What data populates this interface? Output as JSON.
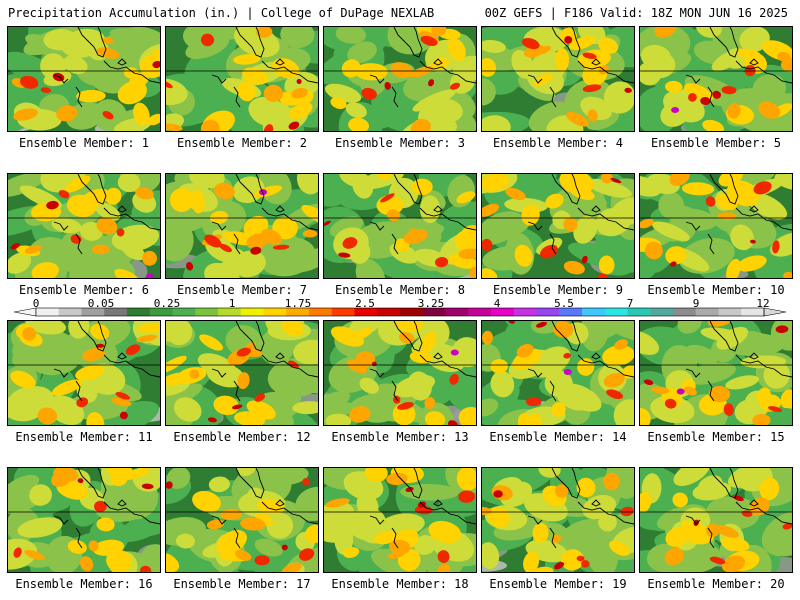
{
  "header": {
    "left": "Precipitation Accumulation (in.) | College of DuPage NEXLAB",
    "right": "00Z GEFS | F186 Valid: 18Z MON JUN 16 2025"
  },
  "member_label_prefix": "Ensemble Member: ",
  "members": [
    1,
    2,
    3,
    4,
    5,
    6,
    7,
    8,
    9,
    10,
    11,
    12,
    13,
    14,
    15,
    16,
    17,
    18,
    19,
    20
  ],
  "colorbar": {
    "tick_labels": [
      "0",
      "0.05",
      "0.25",
      "1",
      "1.75",
      "2.5",
      "3.25",
      "4",
      "5.5",
      "7",
      "9",
      "12"
    ],
    "colors": [
      "#f0f0f0",
      "#c8c8c8",
      "#a0a0a0",
      "#787878",
      "#2e7d32",
      "#3c9b3c",
      "#4caf50",
      "#7cc43c",
      "#b4dc28",
      "#f0f000",
      "#ffd200",
      "#ffaa00",
      "#ff7800",
      "#ff3c00",
      "#e60000",
      "#c80000",
      "#a00000",
      "#800040",
      "#a0006e",
      "#c8009a",
      "#e600c8",
      "#c832e6",
      "#9646f0",
      "#5a78ff",
      "#3cc8ff",
      "#28e6e6",
      "#28c8b4",
      "#50aaa0",
      "#8c8c8c",
      "#aaaaaa",
      "#c8c8c8",
      "#e6e6e6"
    ]
  }
}
